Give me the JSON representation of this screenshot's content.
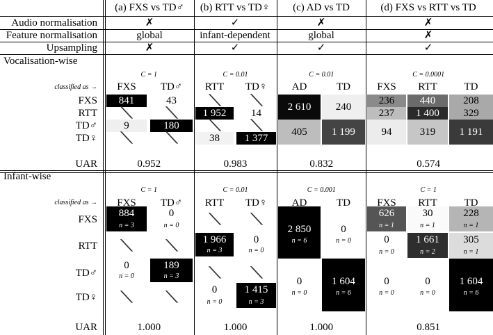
{
  "header": {
    "col_a": "(a) FXS vs TD♂",
    "col_b": "(b) RTT vs TD♀",
    "col_c": "(c) AD vs TD",
    "col_d": "(d) FXS vs RTT vs TD"
  },
  "settings": [
    {
      "label": "Audio normalisation",
      "a": "✗",
      "b": "✓",
      "c": "✗",
      "d": "✗"
    },
    {
      "label": "Feature normalisation",
      "a": "global",
      "b": "infant-dependent",
      "c": "global",
      "d": "✗"
    },
    {
      "label": "Upsampling",
      "a": "✗",
      "b": "✓",
      "c": "✓",
      "d": "✓"
    }
  ],
  "sections": {
    "vocalisation": "Vocalisation-wise",
    "infant": "Infant-wise"
  },
  "classified_as": "classified as →",
  "uar_label": "UAR",
  "dash": "╲",
  "voc": {
    "a": {
      "c": "C = 1",
      "cols": [
        "FXS",
        "TD♂"
      ],
      "uar": "0.952"
    },
    "b": {
      "c": "C = 0.01",
      "cols": [
        "RTT",
        "TD♀"
      ],
      "uar": "0.983"
    },
    "c": {
      "c": "C = 0.01",
      "cols": [
        "AD",
        "TD"
      ],
      "uar": "0.832"
    },
    "d": {
      "c": "C = 0.0001",
      "cols": [
        "FXS",
        "RTT",
        "TD"
      ],
      "uar": "0.574"
    },
    "row_labels": [
      "FXS",
      "RTT",
      "TD♂",
      "TD♀"
    ],
    "a_vals": [
      "841",
      "43",
      "9",
      "180"
    ],
    "b_vals": [
      "1 952",
      "14",
      "38",
      "1 377"
    ],
    "c_vals": [
      "2 610",
      "240",
      "405",
      "1 199"
    ],
    "d_vals": [
      "236",
      "440",
      "208",
      "237",
      "1 400",
      "329",
      "94",
      "319",
      "1 191"
    ]
  },
  "inf": {
    "a": {
      "c": "C = 1",
      "cols": [
        "FXS",
        "TD♂"
      ],
      "uar": "1.000"
    },
    "b": {
      "c": "C = 0.01",
      "cols": [
        "RTT",
        "TD♀"
      ],
      "uar": "1.000"
    },
    "c": {
      "c": "C = 0.001",
      "cols": [
        "AD",
        "TD"
      ],
      "uar": "1.000"
    },
    "d": {
      "c": "C = 1",
      "cols": [
        "FXS",
        "RTT",
        "TD"
      ],
      "uar": "0.851"
    },
    "row_labels": [
      "FXS",
      "RTT",
      "TD♂",
      "TD♀"
    ],
    "a_vals": [
      "884",
      "0",
      "0",
      "189"
    ],
    "a_n": [
      "n = 3",
      "n = 0",
      "n = 0",
      "n = 3"
    ],
    "b_vals": [
      "1 966",
      "0",
      "0",
      "1 415"
    ],
    "b_n": [
      "n = 3",
      "n = 0",
      "n = 0",
      "n = 3"
    ],
    "c_vals": [
      "2 850",
      "0",
      "0",
      "1 604"
    ],
    "c_n": [
      "n = 6",
      "n = 0",
      "n = 0",
      "n = 6"
    ],
    "d_vals": [
      "626",
      "30",
      "228",
      "0",
      "1 661",
      "305",
      "0",
      "0",
      "1 604"
    ],
    "d_n": [
      "n = 1",
      "n = 1",
      "n = 1",
      "n = 0",
      "n = 2",
      "n = 1",
      "n = 0",
      "n = 0",
      "n = 6"
    ]
  }
}
